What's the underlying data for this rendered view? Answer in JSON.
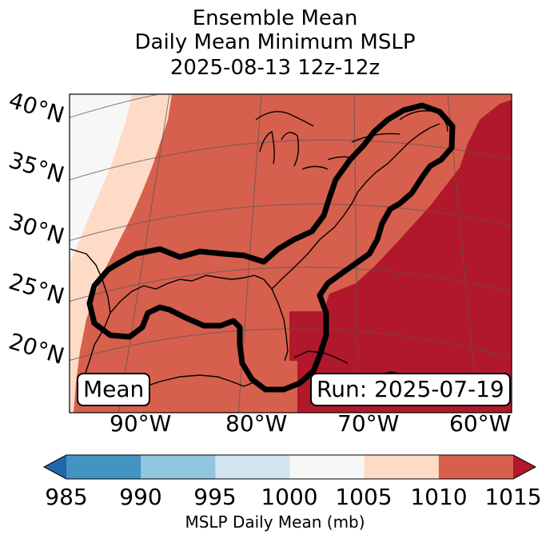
{
  "title": {
    "line1": "Ensemble Mean",
    "line2": "Daily Mean Minimum MSLP",
    "line3": "2025-08-13 12z-12z"
  },
  "map": {
    "lat_labels": [
      "40°N",
      "35°N",
      "30°N",
      "25°N",
      "20°N"
    ],
    "lon_labels": [
      "90°W",
      "80°W",
      "70°W",
      "60°W"
    ],
    "mean_box": "Mean",
    "run_box": "Run: 2025-07-19",
    "field_colors": {
      "band_1000_1005": "#f7f7f7",
      "band_1005_1010": "#fddbc7",
      "band_1010_1015": "#d6604d",
      "band_above_1015": "#b2182b"
    },
    "contour_color": "#000000"
  },
  "colorbar": {
    "ticks": [
      "985",
      "990",
      "995",
      "1000",
      "1005",
      "1010",
      "1015"
    ],
    "colors": [
      "#4393c3",
      "#92c5de",
      "#d1e5f0",
      "#f7f7f7",
      "#fddbc7",
      "#d6604d"
    ],
    "under_color": "#2166ac",
    "over_color": "#b2182b",
    "label": "MSLP Daily Mean (mb)"
  }
}
